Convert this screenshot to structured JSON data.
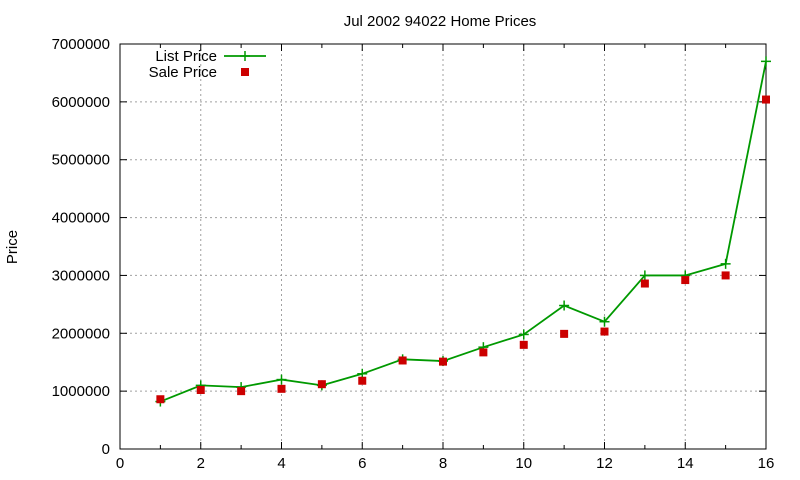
{
  "chart_data": {
    "type": "line",
    "title": "Jul 2002 94022 Home Prices",
    "xlabel": "",
    "ylabel": "Price",
    "xlim": [
      0,
      16
    ],
    "ylim": [
      0,
      7000000
    ],
    "xticks": [
      "0",
      "2",
      "4",
      "6",
      "8",
      "10",
      "12",
      "14",
      "16"
    ],
    "yticks": [
      "0",
      "1000000",
      "2000000",
      "3000000",
      "4000000",
      "5000000",
      "6000000",
      "7000000"
    ],
    "grid": true,
    "legend_position": "top-left",
    "x": [
      1,
      2,
      3,
      4,
      5,
      6,
      7,
      8,
      9,
      10,
      11,
      12,
      13,
      14,
      15,
      16
    ],
    "series": [
      {
        "name": "List Price",
        "style": "line-points",
        "color": "#009900",
        "marker": "plus",
        "values": [
          820000,
          1100000,
          1070000,
          1200000,
          1100000,
          1300000,
          1550000,
          1520000,
          1760000,
          1980000,
          2480000,
          2200000,
          3000000,
          3000000,
          3200000,
          6700000
        ]
      },
      {
        "name": "Sale Price",
        "style": "points",
        "color": "#cc0000",
        "marker": "square",
        "values": [
          860000,
          1020000,
          1000000,
          1040000,
          1120000,
          1180000,
          1530000,
          1510000,
          1670000,
          1800000,
          1990000,
          2030000,
          2860000,
          2920000,
          3000000,
          6040000
        ]
      }
    ]
  }
}
